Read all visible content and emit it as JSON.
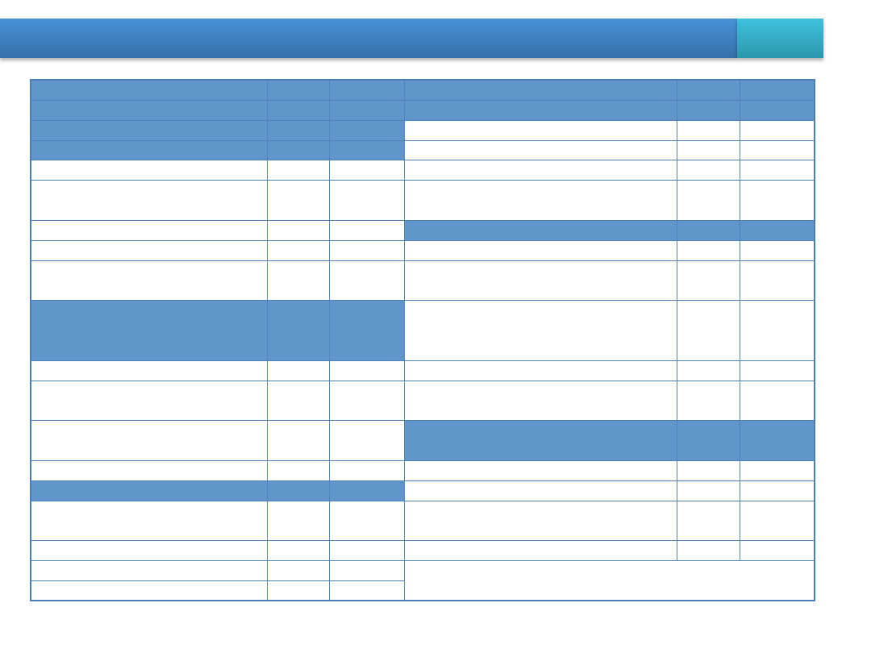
{
  "colors": {
    "banner": "#4083c8",
    "banner_accent": "#35afca",
    "table_header_fill": "#6096c9",
    "table_border": "#4f81bd"
  },
  "table": {
    "left_columns": 3,
    "right_columns": 3,
    "cells_text": []
  }
}
